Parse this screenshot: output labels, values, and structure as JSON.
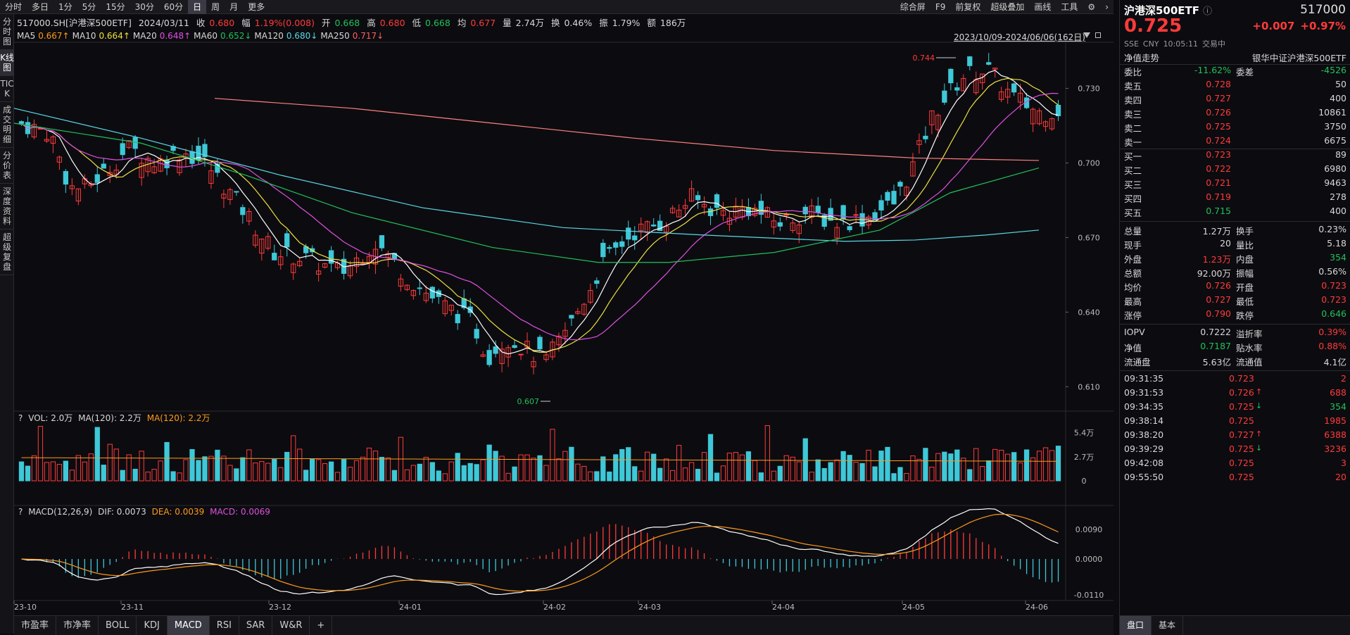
{
  "toolbar": {
    "periods": [
      "分时",
      "多日",
      "1分",
      "5分",
      "15分",
      "30分",
      "60分",
      "日",
      "周",
      "月",
      "更多"
    ],
    "active": "日",
    "right": [
      "综合屏",
      "F9",
      "前复权",
      "超级叠加",
      "画线",
      "工具"
    ],
    "gear": "⚙",
    "expand": "⤢",
    "arrow": "›"
  },
  "leftbar": [
    {
      "label": "分时图"
    },
    {
      "label": "K线图"
    },
    {
      "label": "TICK"
    },
    {
      "label": "成交明细"
    },
    {
      "label": "分价表"
    },
    {
      "label": "深度资料"
    },
    {
      "label": "超级复盘"
    }
  ],
  "leftbar_active": 1,
  "info": {
    "symbol": "517000.SH[沪港深500ETF]",
    "date": "2024/03/11",
    "close_label": "收",
    "close": "0.680",
    "range_label": "幅",
    "range": "1.19%(0.008)",
    "open_label": "开",
    "open": "0.668",
    "high_label": "高",
    "high": "0.680",
    "low_label": "低",
    "low": "0.668",
    "avg_label": "均",
    "avg": "0.677",
    "vol_label": "量",
    "vol": "2.74万",
    "turn_label": "换",
    "turn": "0.46%",
    "amp_label": "振",
    "amp": "1.79%",
    "amt_label": "额",
    "amt": "186万"
  },
  "ma": [
    {
      "label": "MA5",
      "value": "0.667↑",
      "color": "#ff9a1a"
    },
    {
      "label": "MA10",
      "value": "0.664↑",
      "color": "#f0e040"
    },
    {
      "label": "MA20",
      "value": "0.648↑",
      "color": "#e050e0"
    },
    {
      "label": "MA60",
      "value": "0.652↓",
      "color": "#22c05a"
    },
    {
      "label": "MA120",
      "value": "0.680↓",
      "color": "#5ad8e6"
    },
    {
      "label": "MA250",
      "value": "0.717↓",
      "color": "#ff6060"
    }
  ],
  "daterange": "2023/10/09-2024/06/06(162日)",
  "price_axis": [
    "0.730",
    "0.700",
    "0.670",
    "0.640",
    "0.610"
  ],
  "high_mark": "0.744",
  "low_mark": "0.607",
  "vol": {
    "q": "?",
    "label": "VOL: 2.0万",
    "ma_label": "MA(120): 2.2万",
    "ma_label2": "MA(120): 2.2万",
    "axis": [
      "5.4万",
      "2.7万",
      "0"
    ]
  },
  "macd": {
    "q": "?",
    "label": "MACD(12,26,9)",
    "dif": "DIF: 0.0073",
    "dea": "DEA: 0.0039",
    "macd": "MACD: 0.0069",
    "axis": [
      "0.0090",
      "0.0000",
      "-0.0110"
    ]
  },
  "time_axis": [
    "23-10",
    "23-11",
    "23-12",
    "24-01",
    "24-02",
    "24-03",
    "24-04",
    "24-05",
    "24-06"
  ],
  "bottom_tabs": [
    "市盈率",
    "市净率",
    "BOLL",
    "KDJ",
    "MACD",
    "RSI",
    "SAR",
    "W&R",
    "+"
  ],
  "bottom_active": "MACD",
  "quote": {
    "title": "沪港深500ETF",
    "info_icon": "ⓘ",
    "code": "517000",
    "price": "0.725",
    "change": "+0.007",
    "pct": "+0.97%",
    "exch": "SSE",
    "cur": "CNY",
    "time": "10:05:11",
    "status": "交易中",
    "nav_label": "净值走势",
    "fund_name": "银华中证沪港深500ETF",
    "weibi": {
      "l1": "委比",
      "v1": "-11.62%",
      "l2": "委差",
      "v2": "-4526"
    },
    "asks": [
      {
        "label": "卖五",
        "price": "0.728",
        "vol": "50"
      },
      {
        "label": "卖四",
        "price": "0.727",
        "vol": "400"
      },
      {
        "label": "卖三",
        "price": "0.726",
        "vol": "10861"
      },
      {
        "label": "卖二",
        "price": "0.725",
        "vol": "3750"
      },
      {
        "label": "卖一",
        "price": "0.724",
        "vol": "6675"
      }
    ],
    "bids": [
      {
        "label": "买一",
        "price": "0.723",
        "vol": "89",
        "pc": "r"
      },
      {
        "label": "买二",
        "price": "0.722",
        "vol": "6980",
        "pc": "r"
      },
      {
        "label": "买三",
        "price": "0.721",
        "vol": "9463",
        "pc": "r"
      },
      {
        "label": "买四",
        "price": "0.719",
        "vol": "278",
        "pc": "r"
      },
      {
        "label": "买五",
        "price": "0.715",
        "vol": "400",
        "pc": "g"
      }
    ],
    "stats": [
      {
        "l1": "总量",
        "v1": "1.27万",
        "c1": "w",
        "l2": "换手",
        "v2": "0.23%",
        "c2": "w"
      },
      {
        "l1": "现手",
        "v1": "20",
        "c1": "w",
        "l2": "量比",
        "v2": "5.18",
        "c2": "w"
      },
      {
        "l1": "外盘",
        "v1": "1.23万",
        "c1": "r",
        "l2": "内盘",
        "v2": "354",
        "c2": "g"
      },
      {
        "l1": "总额",
        "v1": "92.00万",
        "c1": "w",
        "l2": "振幅",
        "v2": "0.56%",
        "c2": "w"
      },
      {
        "l1": "均价",
        "v1": "0.726",
        "c1": "r",
        "l2": "开盘",
        "v2": "0.723",
        "c2": "r"
      },
      {
        "l1": "最高",
        "v1": "0.727",
        "c1": "r",
        "l2": "最低",
        "v2": "0.723",
        "c2": "r"
      },
      {
        "l1": "涨停",
        "v1": "0.790",
        "c1": "r",
        "l2": "跌停",
        "v2": "0.646",
        "c2": "g"
      }
    ],
    "stats2": [
      {
        "l1": "IOPV",
        "v1": "0.7222",
        "c1": "w",
        "l2": "溢折率",
        "v2": "0.39%",
        "c2": "r"
      },
      {
        "l1": "净值",
        "v1": "0.7187",
        "c1": "g",
        "l2": "贴水率",
        "v2": "0.88%",
        "c2": "r"
      },
      {
        "l1": "流通盘",
        "v1": "5.63亿",
        "c1": "w",
        "l2": "流通值",
        "v2": "4.1亿",
        "c2": "w"
      }
    ],
    "ticks": [
      {
        "t": "09:31:35",
        "p": "0.723",
        "a": "",
        "v": "2",
        "vc": "r"
      },
      {
        "t": "09:31:53",
        "p": "0.726",
        "a": "↑",
        "v": "688",
        "vc": "r"
      },
      {
        "t": "09:34:35",
        "p": "0.725",
        "a": "↓",
        "v": "354",
        "vc": "g"
      },
      {
        "t": "09:38:14",
        "p": "0.725",
        "a": "",
        "v": "1985",
        "vc": "r"
      },
      {
        "t": "09:38:20",
        "p": "0.727",
        "a": "↑",
        "v": "6388",
        "vc": "r"
      },
      {
        "t": "09:39:29",
        "p": "0.725",
        "a": "↓",
        "v": "3236",
        "vc": "r"
      },
      {
        "t": "09:42:08",
        "p": "0.725",
        "a": "",
        "v": "3",
        "vc": "r"
      },
      {
        "t": "09:55:50",
        "p": "0.725",
        "a": "",
        "v": "20",
        "vc": "r"
      }
    ],
    "tabs": [
      "盘口",
      "基本"
    ]
  },
  "colors": {
    "up": "#ff3a3a",
    "down": "#3ec8d8",
    "ma5": "#ffffff",
    "ma10": "#f0e040",
    "ma20": "#e050e0",
    "ma60": "#22c05a",
    "ma120": "#5ad8e6",
    "ma250": "#ff8080",
    "dif": "#ffffff",
    "dea": "#ff9a1a"
  }
}
